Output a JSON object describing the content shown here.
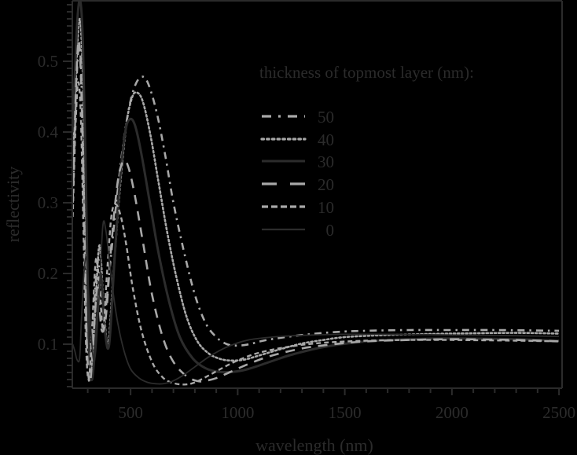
{
  "chart_data": {
    "type": "line",
    "title": "",
    "xlabel": "wavelength  (nm)",
    "ylabel": "reflectivity",
    "xlim": [
      228,
      2515
    ],
    "ylim": [
      0.04,
      0.585
    ],
    "xticks": [
      500,
      1000,
      1500,
      2000,
      2500
    ],
    "xtick_labels": [
      "500",
      "1000",
      "1500",
      "2000",
      "2500"
    ],
    "xminor_step": 100,
    "yticks": [
      0.1,
      0.2,
      0.3,
      0.4,
      0.5
    ],
    "ytick_labels": [
      "0.1",
      "0.2",
      "0.3",
      "0.4",
      "0.5"
    ],
    "yminor_step": 0.01,
    "grid": false,
    "legend": {
      "title": "thickness of topmost layer (nm):",
      "position": "upper right"
    },
    "colors": {
      "background": "#000000",
      "axis": "#2b2b2b",
      "text": "#2b2b2b",
      "light_series": "#a8a8a8",
      "dark_series": "#2c2c2c"
    },
    "series": [
      {
        "name": "50",
        "style": "dashdot",
        "color": "#a8a8a8",
        "width": 2.6,
        "x": [
          230,
          245,
          258,
          270,
          282,
          295,
          310,
          330,
          350,
          375,
          400,
          430,
          460,
          490,
          520,
          551,
          580,
          620,
          660,
          700,
          750,
          800,
          850,
          900,
          950,
          1000,
          1054,
          1120,
          1200,
          1300,
          1400,
          1500,
          1600,
          1800,
          2000,
          2200,
          2500
        ],
        "y": [
          0.3,
          0.45,
          0.52,
          0.48,
          0.3,
          0.12,
          0.09,
          0.16,
          0.22,
          0.14,
          0.2,
          0.29,
          0.37,
          0.43,
          0.465,
          0.478,
          0.47,
          0.43,
          0.37,
          0.3,
          0.23,
          0.17,
          0.13,
          0.11,
          0.1,
          0.098,
          0.1,
          0.105,
          0.109,
          0.113,
          0.116,
          0.118,
          0.119,
          0.12,
          0.12,
          0.12,
          0.119
        ]
      },
      {
        "name": "40",
        "style": "dotted",
        "color": "#a8a8a8",
        "width": 2.6,
        "x": [
          230,
          248,
          262,
          275,
          288,
          300,
          315,
          335,
          355,
          375,
          395,
          420,
          450,
          480,
          505,
          526,
          555,
          590,
          630,
          670,
          710,
          760,
          810,
          860,
          910,
          960,
          1028,
          1100,
          1200,
          1300,
          1400,
          1500,
          1700,
          2000,
          2300,
          2500
        ],
        "y": [
          0.35,
          0.5,
          0.56,
          0.5,
          0.32,
          0.13,
          0.06,
          0.15,
          0.24,
          0.15,
          0.1,
          0.2,
          0.32,
          0.41,
          0.447,
          0.456,
          0.445,
          0.4,
          0.33,
          0.26,
          0.2,
          0.14,
          0.105,
          0.088,
          0.08,
          0.077,
          0.078,
          0.084,
          0.093,
          0.101,
          0.106,
          0.11,
          0.113,
          0.115,
          0.116,
          0.115
        ]
      },
      {
        "name": "30",
        "style": "solid",
        "color": "#2c2c2c",
        "width": 3.0,
        "x": [
          230,
          250,
          265,
          278,
          292,
          305,
          320,
          340,
          360,
          380,
          400,
          425,
          450,
          475,
          496,
          520,
          550,
          590,
          630,
          680,
          730,
          790,
          850,
          910,
          981,
          1050,
          1150,
          1250,
          1400,
          1600,
          1800,
          2000,
          2300,
          2500
        ],
        "y": [
          0.4,
          0.55,
          0.585,
          0.52,
          0.32,
          0.1,
          0.05,
          0.12,
          0.2,
          0.12,
          0.1,
          0.22,
          0.33,
          0.4,
          0.418,
          0.41,
          0.37,
          0.3,
          0.23,
          0.16,
          0.11,
          0.08,
          0.066,
          0.061,
          0.061,
          0.065,
          0.075,
          0.085,
          0.096,
          0.104,
          0.107,
          0.108,
          0.107,
          0.105
        ]
      },
      {
        "name": "20",
        "style": "longdash",
        "color": "#a8a8a8",
        "width": 2.6,
        "x": [
          230,
          245,
          258,
          270,
          283,
          296,
          310,
          325,
          345,
          365,
          385,
          410,
          440,
          467,
          490,
          520,
          560,
          600,
          650,
          700,
          760,
          810,
          845,
          900,
          960,
          1050,
          1150,
          1300,
          1450,
          1600,
          1800,
          2000,
          2300,
          2500
        ],
        "y": [
          0.3,
          0.46,
          0.53,
          0.46,
          0.28,
          0.1,
          0.045,
          0.1,
          0.18,
          0.12,
          0.14,
          0.24,
          0.33,
          0.359,
          0.35,
          0.31,
          0.24,
          0.17,
          0.11,
          0.075,
          0.055,
          0.048,
          0.048,
          0.052,
          0.06,
          0.072,
          0.083,
          0.094,
          0.1,
          0.104,
          0.106,
          0.107,
          0.106,
          0.104
        ]
      },
      {
        "name": "10",
        "style": "shortdash",
        "color": "#a8a8a8",
        "width": 2.4,
        "x": [
          230,
          242,
          255,
          268,
          280,
          292,
          305,
          320,
          338,
          355,
          372,
          390,
          410,
          430,
          455,
          480,
          510,
          550,
          600,
          650,
          700,
          753,
          800,
          860,
          920,
          1000,
          1100,
          1250,
          1400,
          1600,
          1800,
          2000,
          2300,
          2500
        ],
        "y": [
          0.28,
          0.4,
          0.47,
          0.42,
          0.26,
          0.1,
          0.05,
          0.12,
          0.22,
          0.18,
          0.12,
          0.2,
          0.28,
          0.298,
          0.28,
          0.24,
          0.18,
          0.12,
          0.075,
          0.053,
          0.045,
          0.043,
          0.046,
          0.055,
          0.065,
          0.077,
          0.088,
          0.097,
          0.102,
          0.105,
          0.106,
          0.106,
          0.105,
          0.104
        ]
      },
      {
        "name": "0",
        "style": "solid",
        "color": "#2c2c2c",
        "width": 1.8,
        "x": [
          230,
          240,
          250,
          262,
          270,
          282,
          295,
          310,
          330,
          350,
          370,
          385,
          400,
          420,
          440,
          470,
          500,
          540,
          580,
          620,
          650,
          690,
          740,
          800,
          870,
          950,
          1050,
          1200,
          1350,
          1500,
          1700,
          2000,
          2300,
          2500
        ],
        "y": [
          0.1,
          0.09,
          0.078,
          0.08,
          0.13,
          0.2,
          0.22,
          0.14,
          0.076,
          0.15,
          0.266,
          0.26,
          0.22,
          0.17,
          0.13,
          0.09,
          0.065,
          0.052,
          0.046,
          0.044,
          0.044,
          0.047,
          0.055,
          0.068,
          0.083,
          0.096,
          0.106,
          0.111,
          0.113,
          0.114,
          0.114,
          0.113,
          0.112,
          0.111
        ]
      }
    ]
  }
}
